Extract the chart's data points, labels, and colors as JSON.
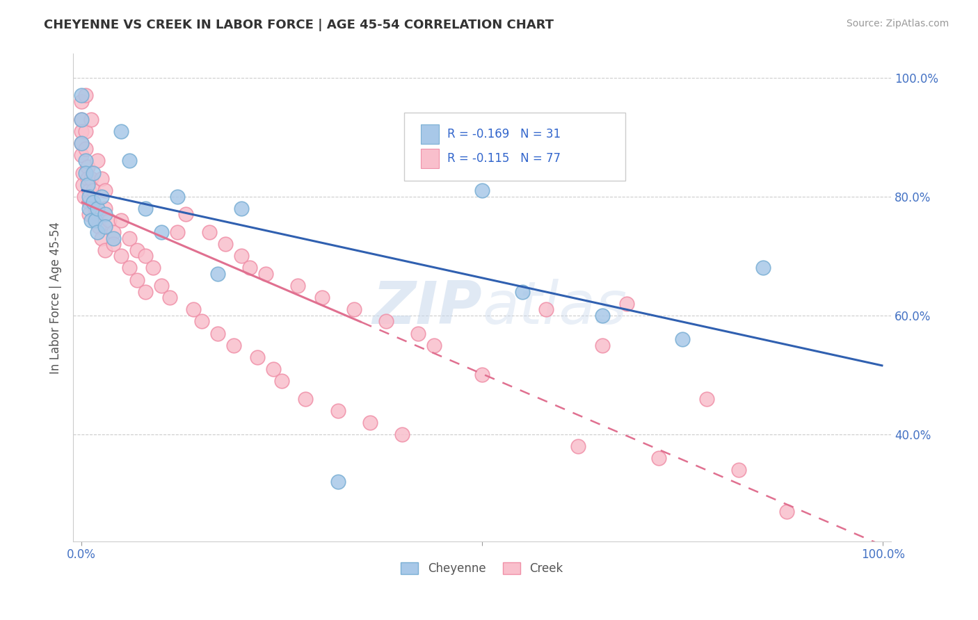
{
  "title": "CHEYENNE VS CREEK IN LABOR FORCE | AGE 45-54 CORRELATION CHART",
  "source": "Source: ZipAtlas.com",
  "ylabel": "In Labor Force | Age 45-54",
  "cheyenne_r": -0.169,
  "cheyenne_n": 31,
  "creek_r": -0.115,
  "creek_n": 77,
  "cheyenne_color_face": "#a8c8e8",
  "cheyenne_color_edge": "#7aafd4",
  "creek_color_face": "#f9bfcc",
  "creek_color_edge": "#f090a8",
  "cheyenne_line_color": "#3060b0",
  "creek_line_color": "#e07090",
  "watermark": "ZIPatlas",
  "xlim": [
    0.0,
    1.0
  ],
  "ylim": [
    0.22,
    1.04
  ],
  "yticks": [
    0.4,
    0.6,
    0.8,
    1.0
  ],
  "ytick_labels": [
    "40.0%",
    "60.0%",
    "80.0%",
    "100.0%"
  ],
  "cheyenne_x": [
    0.0,
    0.0,
    0.0,
    0.005,
    0.005,
    0.008,
    0.01,
    0.01,
    0.012,
    0.015,
    0.015,
    0.018,
    0.02,
    0.02,
    0.025,
    0.03,
    0.03,
    0.04,
    0.05,
    0.06,
    0.08,
    0.1,
    0.12,
    0.17,
    0.2,
    0.32,
    0.5,
    0.55,
    0.65,
    0.75,
    0.85
  ],
  "cheyenne_y": [
    0.97,
    0.93,
    0.89,
    0.86,
    0.84,
    0.82,
    0.8,
    0.78,
    0.76,
    0.84,
    0.79,
    0.76,
    0.74,
    0.78,
    0.8,
    0.77,
    0.75,
    0.73,
    0.91,
    0.86,
    0.78,
    0.74,
    0.8,
    0.67,
    0.78,
    0.32,
    0.81,
    0.64,
    0.6,
    0.56,
    0.68
  ],
  "creek_x": [
    0.0,
    0.0,
    0.0,
    0.0,
    0.0,
    0.002,
    0.002,
    0.004,
    0.005,
    0.005,
    0.005,
    0.008,
    0.008,
    0.01,
    0.01,
    0.01,
    0.012,
    0.012,
    0.015,
    0.015,
    0.018,
    0.018,
    0.02,
    0.02,
    0.022,
    0.025,
    0.025,
    0.03,
    0.03,
    0.03,
    0.035,
    0.04,
    0.04,
    0.05,
    0.05,
    0.06,
    0.06,
    0.07,
    0.07,
    0.08,
    0.08,
    0.09,
    0.1,
    0.11,
    0.12,
    0.13,
    0.14,
    0.15,
    0.16,
    0.17,
    0.18,
    0.19,
    0.2,
    0.21,
    0.22,
    0.23,
    0.24,
    0.25,
    0.27,
    0.28,
    0.3,
    0.32,
    0.34,
    0.36,
    0.38,
    0.4,
    0.42,
    0.44,
    0.5,
    0.58,
    0.62,
    0.65,
    0.68,
    0.72,
    0.78,
    0.82,
    0.88
  ],
  "creek_y": [
    0.96,
    0.93,
    0.91,
    0.89,
    0.87,
    0.84,
    0.82,
    0.8,
    0.97,
    0.91,
    0.88,
    0.85,
    0.83,
    0.81,
    0.79,
    0.77,
    0.93,
    0.83,
    0.81,
    0.79,
    0.78,
    0.76,
    0.86,
    0.77,
    0.75,
    0.83,
    0.73,
    0.81,
    0.78,
    0.71,
    0.76,
    0.74,
    0.72,
    0.76,
    0.7,
    0.73,
    0.68,
    0.71,
    0.66,
    0.7,
    0.64,
    0.68,
    0.65,
    0.63,
    0.74,
    0.77,
    0.61,
    0.59,
    0.74,
    0.57,
    0.72,
    0.55,
    0.7,
    0.68,
    0.53,
    0.67,
    0.51,
    0.49,
    0.65,
    0.46,
    0.63,
    0.44,
    0.61,
    0.42,
    0.59,
    0.4,
    0.57,
    0.55,
    0.5,
    0.61,
    0.38,
    0.55,
    0.62,
    0.36,
    0.46,
    0.34,
    0.27
  ]
}
